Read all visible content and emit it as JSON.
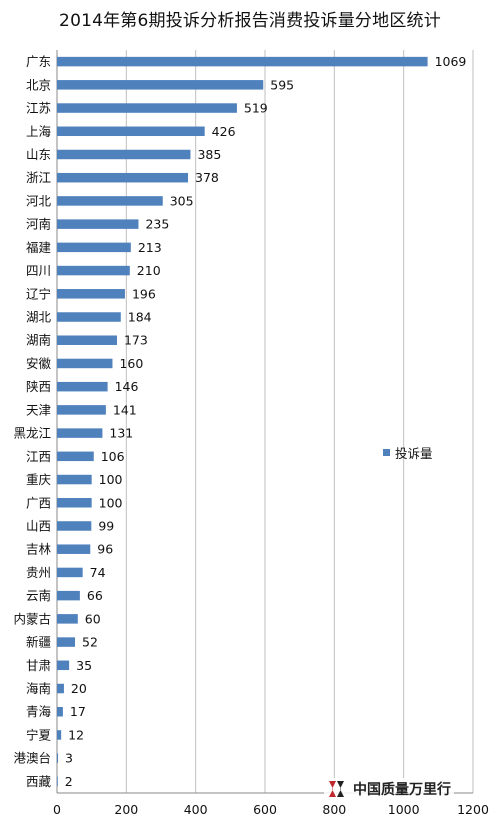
{
  "colors": {
    "bar": "#4f81bd",
    "grid": "#bfbfbf",
    "axis": "#888888",
    "logo_red": "#c0282d"
  },
  "watermark": {
    "text": "中国质量万里行"
  },
  "chart_data": {
    "type": "bar",
    "orientation": "horizontal",
    "title": "2014年第6期投诉分析报告消费投诉量分地区统计",
    "xlabel": "",
    "ylabel": "",
    "xlim": [
      0,
      1200
    ],
    "x_ticks": [
      0,
      200,
      400,
      600,
      800,
      1000,
      1200
    ],
    "grid": true,
    "legend": "right",
    "series": [
      {
        "name": "投诉量",
        "values": [
          1069,
          595,
          519,
          426,
          385,
          378,
          305,
          235,
          213,
          210,
          196,
          184,
          173,
          160,
          146,
          141,
          131,
          106,
          100,
          100,
          99,
          96,
          74,
          66,
          60,
          52,
          35,
          20,
          17,
          12,
          3,
          2
        ]
      }
    ],
    "categories": [
      "广东",
      "北京",
      "江苏",
      "上海",
      "山东",
      "浙江",
      "河北",
      "河南",
      "福建",
      "四川",
      "辽宁",
      "湖北",
      "湖南",
      "安徽",
      "陕西",
      "天津",
      "黑龙江",
      "江西",
      "重庆",
      "广西",
      "山西",
      "吉林",
      "贵州",
      "云南",
      "内蒙古",
      "新疆",
      "甘肃",
      "海南",
      "青海",
      "宁夏",
      "港澳台",
      "西藏"
    ]
  }
}
